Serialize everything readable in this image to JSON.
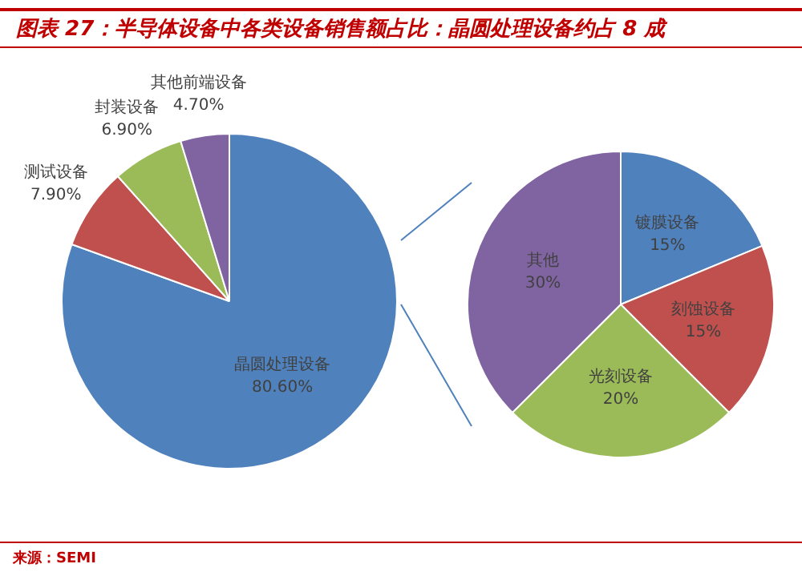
{
  "chart_data": [
    {
      "type": "pie",
      "title": "图表 27：半导体设备中各类设备销售额占比：晶圆处理设备约占 8 成",
      "annotations": [
        "来源：SEMI"
      ],
      "categories": [
        "晶圆处理设备",
        "测试设备",
        "封装设备",
        "其他前端设备"
      ],
      "values": [
        80.6,
        7.9,
        6.9,
        4.7
      ],
      "value_labels": [
        "80.60%",
        "7.90%",
        "6.90%",
        "4.70%"
      ],
      "colors": [
        "#4f81bd",
        "#c0504d",
        "#9bbb59",
        "#8064a2"
      ]
    },
    {
      "type": "pie",
      "categories": [
        "镀膜设备",
        "刻蚀设备",
        "光刻设备",
        "其他"
      ],
      "values": [
        15,
        15,
        20,
        30
      ],
      "value_labels": [
        "15%",
        "15%",
        "20%",
        "30%"
      ],
      "colors": [
        "#4f81bd",
        "#c0504d",
        "#9bbb59",
        "#8064a2"
      ]
    }
  ]
}
